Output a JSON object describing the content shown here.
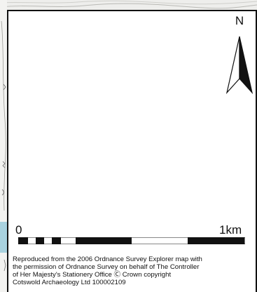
{
  "north_arrow": {
    "label": "N"
  },
  "scale_bar": {
    "start_label": "0",
    "end_label": "1km",
    "segments": [
      "black",
      "white",
      "black",
      "white",
      "black",
      "white",
      "black",
      "white"
    ]
  },
  "attribution": {
    "line1": "Reproduced from the 2006 Ordnance Survey Explorer map with",
    "line2": "the permission of Ordnance Survey on behalf of The Controller",
    "line3": "of Her Majesty's Stationery Office Ⓒ Crown copyright",
    "line4": "Cotswold Archaeology Ltd 100002109"
  },
  "colors": {
    "ink": "#111111",
    "map_water": "#a9d2df",
    "map_background": "#f3f3f1"
  }
}
